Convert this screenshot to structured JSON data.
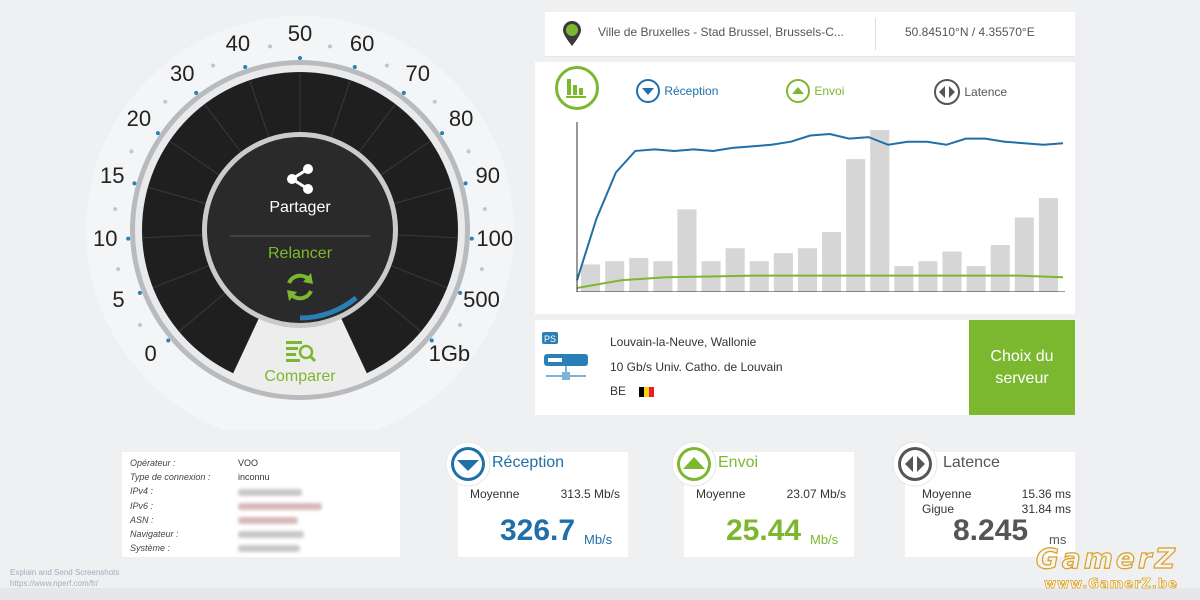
{
  "location": {
    "place": "Ville de Bruxelles - Stad Brussel, Brussels-C...",
    "coords": "50.84510°N / 4.35570°E"
  },
  "legend": {
    "download": "Réception",
    "upload": "Envoi",
    "latency": "Latence"
  },
  "gauge": {
    "ticks": [
      "0",
      "5",
      "10",
      "15",
      "20",
      "30",
      "40",
      "50",
      "60",
      "70",
      "80",
      "90",
      "100",
      "500",
      "1Gb"
    ],
    "share_label": "Partager",
    "restart_label": "Relancer",
    "compare_label": "Comparer",
    "progress_fraction": 0.2
  },
  "server": {
    "badge": "PS",
    "city": "Louvain-la-Neuve, Wallonie",
    "provider": "10 Gb/s Univ. Catho. de Louvain",
    "country": "BE",
    "choose_label_1": "Choix du",
    "choose_label_2": "serveur"
  },
  "info": {
    "rows": [
      {
        "label": "Opérateur :",
        "value": "VOO"
      },
      {
        "label": "Type de connexion :",
        "value": "inconnu"
      },
      {
        "label": "IPv4 :",
        "value": ""
      },
      {
        "label": "IPv6 :",
        "value": ""
      },
      {
        "label": "ASN :",
        "value": ""
      },
      {
        "label": "Navigateur :",
        "value": ""
      },
      {
        "label": "Système :",
        "value": ""
      }
    ]
  },
  "stats": {
    "download": {
      "title": "Réception",
      "avg_label": "Moyenne",
      "avg_value": "313.5 Mb/s",
      "value": "326.7",
      "unit": "Mb/s"
    },
    "upload": {
      "title": "Envoi",
      "avg_label": "Moyenne",
      "avg_value": "23.07 Mb/s",
      "value": "25.44",
      "unit": "Mb/s"
    },
    "latency": {
      "title": "Latence",
      "avg_label": "Moyenne",
      "avg_value": "15.36 ms",
      "jitter_label": "Gigue",
      "jitter_value": "31.84 ms",
      "value": "8.245",
      "unit": "ms"
    }
  },
  "footer": {
    "line1": "Explain and Send Screenshots",
    "line2": "https://www.nperf.com/fr/"
  },
  "watermark": {
    "brand": "GamerZ",
    "url": "www.GamerZ.be"
  },
  "colors": {
    "download": "#1f6fa8",
    "upload": "#7cb82f",
    "latency": "#555555",
    "bars": "#d6d6d6"
  },
  "chart_data": {
    "type": "bar",
    "bar_values": [
      0.17,
      0.19,
      0.21,
      0.19,
      0.51,
      0.19,
      0.27,
      0.19,
      0.24,
      0.27,
      0.37,
      0.82,
      1.0,
      0.16,
      0.19,
      0.25,
      0.16,
      0.29,
      0.46,
      0.58
    ],
    "download_line": [
      0.05,
      0.45,
      0.75,
      0.89,
      0.9,
      0.89,
      0.9,
      0.89,
      0.91,
      0.92,
      0.93,
      0.95,
      0.99,
      1.0,
      0.97,
      0.98,
      0.93,
      0.95,
      0.95,
      0.93,
      0.97,
      0.97,
      0.95,
      0.94,
      0.93,
      0.94
    ],
    "upload_line": [
      0.0,
      0.05,
      0.07,
      0.075,
      0.08,
      0.08,
      0.08,
      0.08,
      0.08,
      0.08,
      0.08,
      0.07
    ]
  }
}
